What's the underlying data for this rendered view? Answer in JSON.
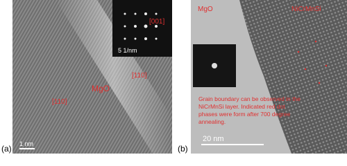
{
  "panels": [
    {
      "label": "(a)",
      "annotations": [
        "MgO",
        "[110]",
        "[110]",
        "[001]"
      ],
      "inset_scale": "5 1/nm",
      "scale_bar": "1 nm"
    },
    {
      "label": "(b)",
      "annotations": [
        "MgO",
        "NiCrMnSi"
      ],
      "caption": [
        "Grain boundary can be observed in the",
        "NiCrMnSi layer. Indicated red dot",
        "phases were form after 700 degree",
        "annealing."
      ],
      "scale_bar": "20 nm"
    }
  ]
}
